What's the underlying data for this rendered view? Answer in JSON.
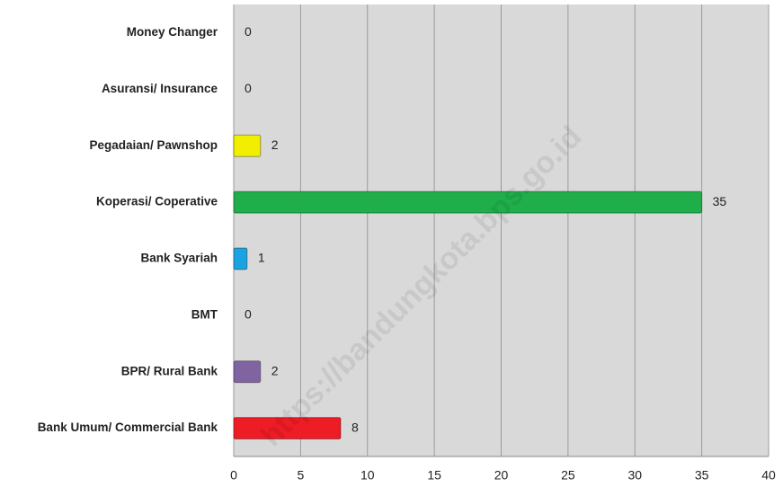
{
  "chart_data": {
    "type": "hbar",
    "categories": [
      "Money Changer",
      "Asuransi/ Insurance",
      "Pegadaian/ Pawnshop",
      "Koperasi/ Coperative",
      "Bank Syariah",
      "BMT",
      "BPR/ Rural Bank",
      "Bank Umum/ Commercial Bank"
    ],
    "values": [
      0,
      0,
      2,
      35,
      1,
      0,
      2,
      8
    ],
    "colors": [
      "#a0a0a0",
      "#a0a0a0",
      "#f2ee00",
      "#1fae4a",
      "#1ba2e0",
      "#a0a0a0",
      "#8064a2",
      "#ee1c24"
    ],
    "xlim": [
      0,
      40
    ],
    "xticks": [
      0,
      5,
      10,
      15,
      20,
      25,
      30,
      35,
      40
    ],
    "grid": true,
    "watermark": "https://bandungkota.bps.go.id"
  }
}
